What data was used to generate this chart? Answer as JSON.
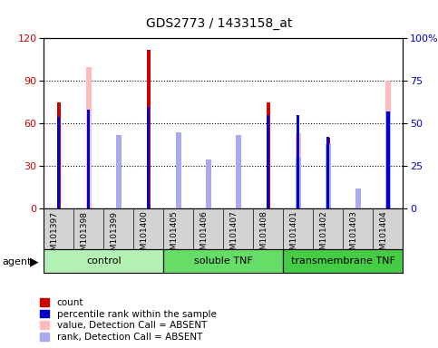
{
  "title": "GDS2773 / 1433158_at",
  "samples": [
    "GSM101397",
    "GSM101398",
    "GSM101399",
    "GSM101400",
    "GSM101405",
    "GSM101406",
    "GSM101407",
    "GSM101408",
    "GSM101401",
    "GSM101402",
    "GSM101403",
    "GSM101404"
  ],
  "groups": [
    {
      "label": "control",
      "start": 0,
      "end": 4,
      "color": "#b3f0b3"
    },
    {
      "label": "soluble TNF",
      "start": 4,
      "end": 8,
      "color": "#66dd66"
    },
    {
      "label": "transmembrane TNF",
      "start": 8,
      "end": 12,
      "color": "#44cc44"
    }
  ],
  "count_values": [
    75,
    0,
    0,
    112,
    0,
    0,
    0,
    75,
    0,
    50,
    0,
    0
  ],
  "percentile_values": [
    54,
    58,
    0,
    60,
    0,
    0,
    0,
    55,
    55,
    42,
    0,
    57
  ],
  "absent_value_vals": [
    0,
    100,
    40,
    0,
    43,
    27,
    43,
    0,
    53,
    0,
    8,
    90
  ],
  "absent_rank_vals": [
    0,
    0,
    43,
    0,
    45,
    29,
    43,
    0,
    30,
    38,
    12,
    57
  ],
  "has_count": [
    true,
    false,
    false,
    true,
    false,
    false,
    false,
    true,
    false,
    true,
    false,
    false
  ],
  "has_percentile": [
    true,
    true,
    false,
    true,
    false,
    false,
    false,
    true,
    true,
    true,
    false,
    true
  ],
  "has_absent_value": [
    false,
    true,
    true,
    false,
    true,
    true,
    true,
    false,
    true,
    false,
    true,
    true
  ],
  "has_absent_rank": [
    false,
    false,
    true,
    false,
    true,
    true,
    true,
    false,
    true,
    true,
    true,
    true
  ],
  "ylim_left": [
    0,
    120
  ],
  "ylim_right": [
    0,
    100
  ],
  "yticks_left": [
    0,
    30,
    60,
    90,
    120
  ],
  "yticks_right": [
    0,
    25,
    50,
    75,
    100
  ],
  "ytick_labels_right": [
    "0",
    "25",
    "50",
    "75",
    "100%"
  ],
  "count_color": "#cc0000",
  "percentile_color": "#0000cc",
  "absent_value_color": "#ffbbbb",
  "absent_rank_color": "#aaaaee",
  "plot_bg": "#ffffff",
  "sample_label_bg": "#d3d3d3",
  "thin_bar_width": 0.18,
  "count_bar_width": 0.12,
  "percentile_bar_width": 0.1
}
